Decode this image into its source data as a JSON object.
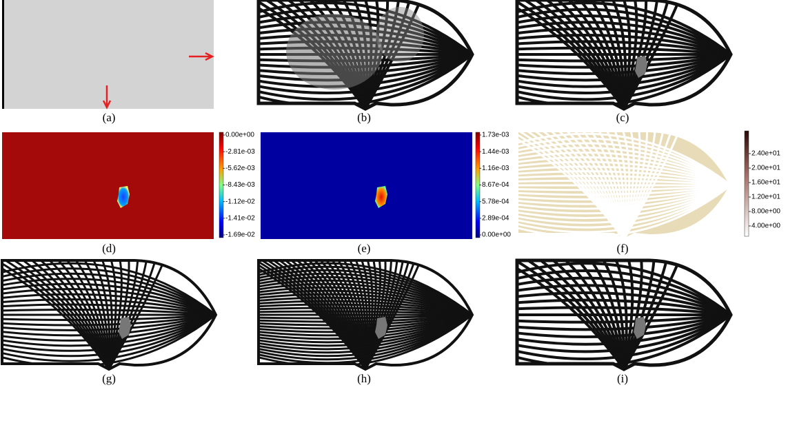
{
  "panels": [
    {
      "label": "(a)"
    },
    {
      "label": "(b)"
    },
    {
      "label": "(c)"
    },
    {
      "label": "(d)"
    },
    {
      "label": "(e)"
    },
    {
      "label": "(f)"
    },
    {
      "label": "(g)"
    },
    {
      "label": "(h)"
    },
    {
      "label": "(i)"
    }
  ],
  "colorbars": [
    {
      "ticks": [
        "0.00e+00",
        "-2.81e-03",
        "-5.62e-03",
        "-8.43e-03",
        "-1.12e-02",
        "-1.41e-02",
        "-1.69e-02"
      ]
    },
    {
      "ticks": [
        "1.73e-03",
        "1.44e-03",
        "1.16e-03",
        "8.67e-04",
        "5.78e-04",
        "2.89e-04",
        "0.00e+00"
      ]
    },
    {
      "ticks": [
        "2.40e+01",
        "2.00e+01",
        "1.60e+01",
        "1.20e+01",
        "8.00e+00",
        "4.00e+00"
      ]
    }
  ]
}
